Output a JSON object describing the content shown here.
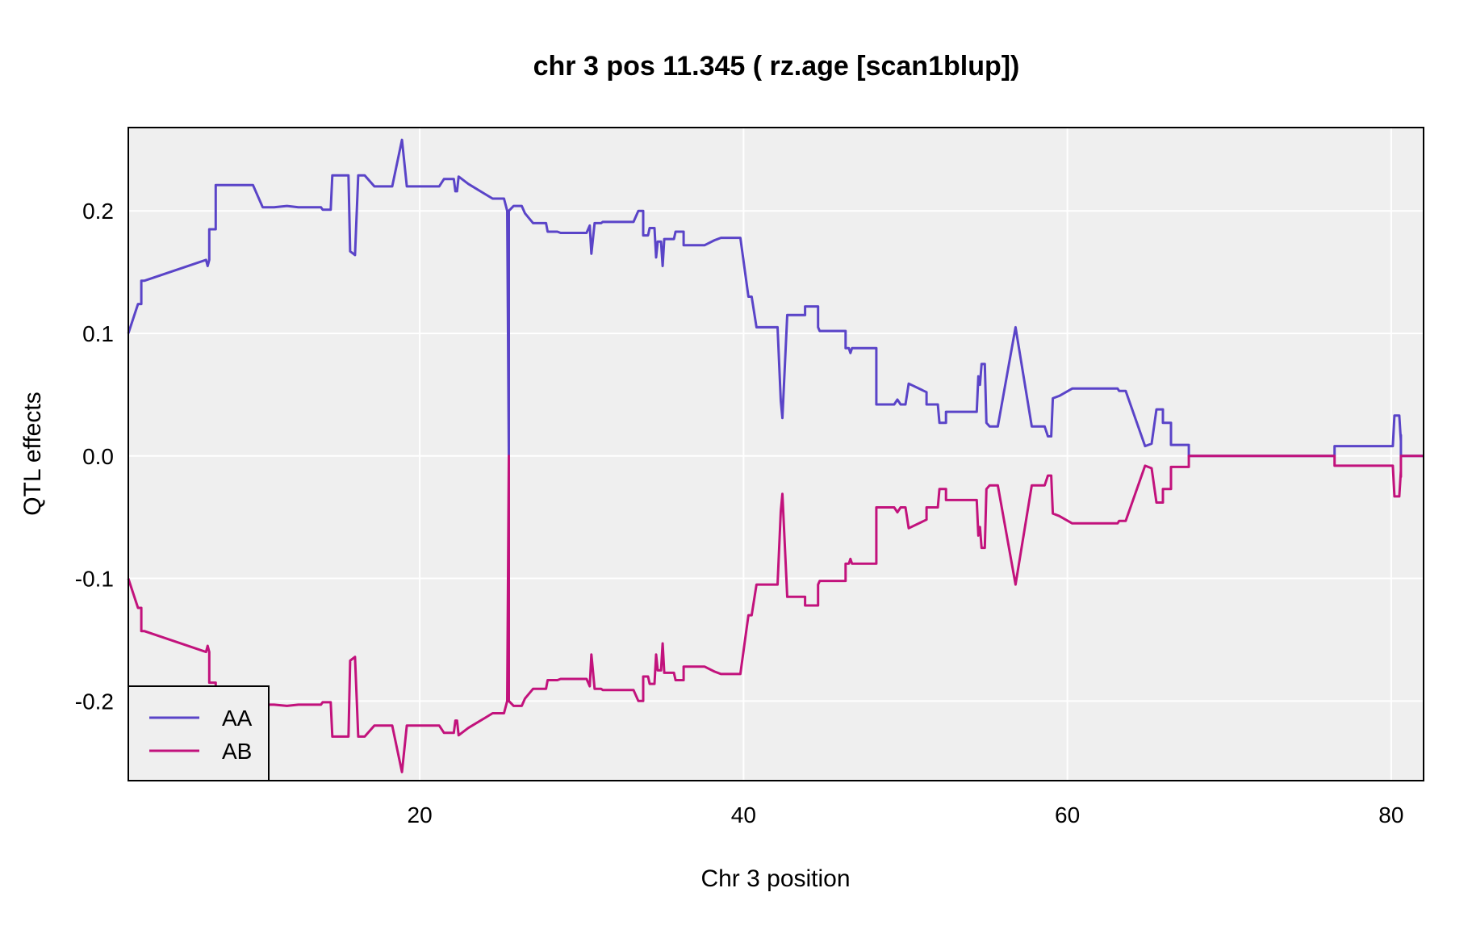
{
  "chart_data": {
    "type": "line",
    "title": "chr 3 pos 11.345 ( rz.age  [scan1blup])",
    "xlabel": "Chr 3 position",
    "ylabel": "QTL effects",
    "xlim": [
      2.0,
      82.0
    ],
    "ylim": [
      -0.265,
      0.268
    ],
    "x_ticks": [
      20,
      40,
      60,
      80
    ],
    "y_ticks": [
      0.2,
      0.1,
      0.0,
      -0.1,
      -0.2
    ],
    "y_tick_labels": [
      "0.2",
      "0.1",
      "0.0",
      "-0.1",
      "-0.2"
    ],
    "grid": true,
    "legend_position": "bottom-left",
    "colors": {
      "AA": "#5a44c8",
      "AB": "#c2127c",
      "panel": "#efefef",
      "grid": "#ffffff"
    },
    "series": [
      {
        "name": "AA",
        "color": "#5a44c8",
        "points": [
          [
            2.0,
            0.1
          ],
          [
            2.6,
            0.124
          ],
          [
            2.8,
            0.124
          ],
          [
            2.8,
            0.143
          ],
          [
            3.0,
            0.143
          ],
          [
            6.8,
            0.16
          ],
          [
            6.9,
            0.155
          ],
          [
            7.0,
            0.16
          ],
          [
            7.0,
            0.185
          ],
          [
            7.4,
            0.185
          ],
          [
            7.4,
            0.221
          ],
          [
            9.0,
            0.221
          ],
          [
            9.7,
            0.221
          ],
          [
            10.3,
            0.203
          ],
          [
            11.0,
            0.203
          ],
          [
            11.8,
            0.204
          ],
          [
            12.5,
            0.203
          ],
          [
            13.2,
            0.203
          ],
          [
            13.9,
            0.203
          ],
          [
            14.0,
            0.201
          ],
          [
            14.5,
            0.201
          ],
          [
            14.6,
            0.229
          ],
          [
            15.3,
            0.229
          ],
          [
            15.6,
            0.229
          ],
          [
            15.7,
            0.167
          ],
          [
            16.0,
            0.164
          ],
          [
            16.2,
            0.229
          ],
          [
            16.6,
            0.229
          ],
          [
            17.2,
            0.22
          ],
          [
            18.3,
            0.22
          ],
          [
            18.9,
            0.258
          ],
          [
            19.2,
            0.22
          ],
          [
            20.1,
            0.22
          ],
          [
            21.2,
            0.22
          ],
          [
            21.5,
            0.226
          ],
          [
            22.1,
            0.226
          ],
          [
            22.2,
            0.216
          ],
          [
            22.3,
            0.216
          ],
          [
            22.4,
            0.228
          ],
          [
            23.0,
            0.222
          ],
          [
            24.0,
            0.214
          ],
          [
            24.5,
            0.21
          ],
          [
            25.2,
            0.21
          ],
          [
            25.4,
            0.2
          ],
          [
            25.5,
            0.0
          ],
          [
            25.5,
            0.2
          ],
          [
            25.8,
            0.204
          ],
          [
            26.3,
            0.204
          ],
          [
            26.5,
            0.198
          ],
          [
            27.0,
            0.19
          ],
          [
            27.8,
            0.19
          ],
          [
            27.9,
            0.183
          ],
          [
            28.5,
            0.183
          ],
          [
            28.7,
            0.182
          ],
          [
            30.3,
            0.182
          ],
          [
            30.5,
            0.188
          ],
          [
            30.6,
            0.165
          ],
          [
            30.8,
            0.19
          ],
          [
            31.2,
            0.19
          ],
          [
            31.3,
            0.191
          ],
          [
            32.2,
            0.191
          ],
          [
            33.2,
            0.191
          ],
          [
            33.5,
            0.2
          ],
          [
            33.8,
            0.2
          ],
          [
            33.8,
            0.18
          ],
          [
            34.1,
            0.18
          ],
          [
            34.2,
            0.186
          ],
          [
            34.5,
            0.186
          ],
          [
            34.6,
            0.162
          ],
          [
            34.7,
            0.175
          ],
          [
            34.9,
            0.175
          ],
          [
            35.0,
            0.155
          ],
          [
            35.1,
            0.177
          ],
          [
            35.7,
            0.177
          ],
          [
            35.8,
            0.183
          ],
          [
            36.3,
            0.183
          ],
          [
            36.3,
            0.172
          ],
          [
            37.6,
            0.172
          ],
          [
            38.2,
            0.176
          ],
          [
            38.6,
            0.178
          ],
          [
            39.8,
            0.178
          ],
          [
            40.3,
            0.13
          ],
          [
            40.5,
            0.13
          ],
          [
            40.8,
            0.105
          ],
          [
            42.1,
            0.105
          ],
          [
            42.3,
            0.045
          ],
          [
            42.4,
            0.031
          ],
          [
            42.7,
            0.115
          ],
          [
            43.8,
            0.115
          ],
          [
            43.8,
            0.122
          ],
          [
            44.6,
            0.122
          ],
          [
            44.6,
            0.105
          ],
          [
            44.7,
            0.102
          ],
          [
            46.3,
            0.102
          ],
          [
            46.3,
            0.088
          ],
          [
            46.5,
            0.088
          ],
          [
            46.6,
            0.084
          ],
          [
            46.7,
            0.088
          ],
          [
            48.2,
            0.088
          ],
          [
            48.2,
            0.042
          ],
          [
            49.3,
            0.042
          ],
          [
            49.5,
            0.046
          ],
          [
            49.7,
            0.042
          ],
          [
            50.0,
            0.042
          ],
          [
            50.2,
            0.059
          ],
          [
            51.3,
            0.052
          ],
          [
            51.3,
            0.042
          ],
          [
            52.0,
            0.042
          ],
          [
            52.1,
            0.027
          ],
          [
            52.5,
            0.027
          ],
          [
            52.5,
            0.036
          ],
          [
            54.4,
            0.036
          ],
          [
            54.5,
            0.065
          ],
          [
            54.6,
            0.058
          ],
          [
            54.7,
            0.075
          ],
          [
            54.9,
            0.075
          ],
          [
            55.0,
            0.027
          ],
          [
            55.2,
            0.024
          ],
          [
            55.7,
            0.024
          ],
          [
            56.8,
            0.105
          ],
          [
            57.8,
            0.024
          ],
          [
            58.6,
            0.024
          ],
          [
            58.8,
            0.016
          ],
          [
            59.0,
            0.016
          ],
          [
            59.1,
            0.047
          ],
          [
            59.5,
            0.049
          ],
          [
            60.3,
            0.055
          ],
          [
            61.2,
            0.055
          ],
          [
            62.0,
            0.055
          ],
          [
            63.1,
            0.055
          ],
          [
            63.2,
            0.053
          ],
          [
            63.6,
            0.053
          ],
          [
            64.8,
            0.008
          ],
          [
            65.2,
            0.01
          ],
          [
            65.5,
            0.038
          ],
          [
            65.9,
            0.038
          ],
          [
            65.9,
            0.027
          ],
          [
            66.4,
            0.027
          ],
          [
            66.4,
            0.009
          ],
          [
            67.5,
            0.009
          ],
          [
            67.5,
            0.0
          ],
          [
            76.5,
            0.0
          ],
          [
            76.5,
            0.008
          ],
          [
            80.1,
            0.008
          ],
          [
            80.2,
            0.033
          ],
          [
            80.5,
            0.033
          ],
          [
            80.6,
            0.012
          ],
          [
            80.6,
            0.017
          ],
          [
            80.6,
            0.0
          ],
          [
            82.0,
            0.0
          ]
        ]
      },
      {
        "name": "AB",
        "color": "#c2127c",
        "points": [
          [
            2.0,
            -0.1
          ],
          [
            2.6,
            -0.124
          ],
          [
            2.8,
            -0.124
          ],
          [
            2.8,
            -0.143
          ],
          [
            3.0,
            -0.143
          ],
          [
            6.8,
            -0.16
          ],
          [
            6.9,
            -0.155
          ],
          [
            7.0,
            -0.16
          ],
          [
            7.0,
            -0.185
          ],
          [
            7.4,
            -0.185
          ],
          [
            7.4,
            -0.221
          ],
          [
            9.0,
            -0.221
          ],
          [
            9.7,
            -0.221
          ],
          [
            10.3,
            -0.203
          ],
          [
            11.0,
            -0.203
          ],
          [
            11.8,
            -0.204
          ],
          [
            12.5,
            -0.203
          ],
          [
            13.2,
            -0.203
          ],
          [
            13.9,
            -0.203
          ],
          [
            14.0,
            -0.201
          ],
          [
            14.5,
            -0.201
          ],
          [
            14.6,
            -0.229
          ],
          [
            15.3,
            -0.229
          ],
          [
            15.6,
            -0.229
          ],
          [
            15.7,
            -0.167
          ],
          [
            16.0,
            -0.164
          ],
          [
            16.2,
            -0.229
          ],
          [
            16.6,
            -0.229
          ],
          [
            17.2,
            -0.22
          ],
          [
            18.3,
            -0.22
          ],
          [
            18.9,
            -0.258
          ],
          [
            19.2,
            -0.22
          ],
          [
            20.1,
            -0.22
          ],
          [
            21.2,
            -0.22
          ],
          [
            21.5,
            -0.226
          ],
          [
            22.1,
            -0.226
          ],
          [
            22.2,
            -0.216
          ],
          [
            22.3,
            -0.216
          ],
          [
            22.4,
            -0.228
          ],
          [
            23.0,
            -0.222
          ],
          [
            24.0,
            -0.214
          ],
          [
            24.5,
            -0.21
          ],
          [
            25.2,
            -0.21
          ],
          [
            25.4,
            -0.2
          ],
          [
            25.5,
            0.0
          ],
          [
            25.5,
            -0.2
          ],
          [
            25.8,
            -0.204
          ],
          [
            26.3,
            -0.204
          ],
          [
            26.5,
            -0.198
          ],
          [
            27.0,
            -0.19
          ],
          [
            27.8,
            -0.19
          ],
          [
            27.9,
            -0.183
          ],
          [
            28.5,
            -0.183
          ],
          [
            28.7,
            -0.182
          ],
          [
            30.3,
            -0.182
          ],
          [
            30.5,
            -0.188
          ],
          [
            30.6,
            -0.162
          ],
          [
            30.8,
            -0.19
          ],
          [
            31.2,
            -0.19
          ],
          [
            31.3,
            -0.191
          ],
          [
            32.2,
            -0.191
          ],
          [
            33.2,
            -0.191
          ],
          [
            33.5,
            -0.2
          ],
          [
            33.8,
            -0.2
          ],
          [
            33.8,
            -0.18
          ],
          [
            34.1,
            -0.18
          ],
          [
            34.2,
            -0.186
          ],
          [
            34.5,
            -0.186
          ],
          [
            34.6,
            -0.162
          ],
          [
            34.7,
            -0.175
          ],
          [
            34.9,
            -0.175
          ],
          [
            35.0,
            -0.153
          ],
          [
            35.1,
            -0.177
          ],
          [
            35.7,
            -0.177
          ],
          [
            35.8,
            -0.183
          ],
          [
            36.3,
            -0.183
          ],
          [
            36.3,
            -0.172
          ],
          [
            37.6,
            -0.172
          ],
          [
            38.2,
            -0.176
          ],
          [
            38.6,
            -0.178
          ],
          [
            39.8,
            -0.178
          ],
          [
            40.3,
            -0.13
          ],
          [
            40.5,
            -0.13
          ],
          [
            40.8,
            -0.105
          ],
          [
            42.1,
            -0.105
          ],
          [
            42.3,
            -0.045
          ],
          [
            42.4,
            -0.031
          ],
          [
            42.7,
            -0.115
          ],
          [
            43.8,
            -0.115
          ],
          [
            43.8,
            -0.122
          ],
          [
            44.6,
            -0.122
          ],
          [
            44.6,
            -0.105
          ],
          [
            44.7,
            -0.102
          ],
          [
            46.3,
            -0.102
          ],
          [
            46.3,
            -0.088
          ],
          [
            46.5,
            -0.088
          ],
          [
            46.6,
            -0.084
          ],
          [
            46.7,
            -0.088
          ],
          [
            48.2,
            -0.088
          ],
          [
            48.2,
            -0.042
          ],
          [
            49.3,
            -0.042
          ],
          [
            49.5,
            -0.046
          ],
          [
            49.7,
            -0.042
          ],
          [
            50.0,
            -0.042
          ],
          [
            50.2,
            -0.059
          ],
          [
            51.3,
            -0.052
          ],
          [
            51.3,
            -0.042
          ],
          [
            52.0,
            -0.042
          ],
          [
            52.1,
            -0.027
          ],
          [
            52.5,
            -0.027
          ],
          [
            52.5,
            -0.036
          ],
          [
            54.4,
            -0.036
          ],
          [
            54.5,
            -0.065
          ],
          [
            54.6,
            -0.058
          ],
          [
            54.7,
            -0.075
          ],
          [
            54.9,
            -0.075
          ],
          [
            55.0,
            -0.027
          ],
          [
            55.2,
            -0.024
          ],
          [
            55.7,
            -0.024
          ],
          [
            56.8,
            -0.105
          ],
          [
            57.8,
            -0.024
          ],
          [
            58.6,
            -0.024
          ],
          [
            58.8,
            -0.016
          ],
          [
            59.0,
            -0.016
          ],
          [
            59.1,
            -0.047
          ],
          [
            59.5,
            -0.049
          ],
          [
            60.3,
            -0.055
          ],
          [
            61.2,
            -0.055
          ],
          [
            62.0,
            -0.055
          ],
          [
            63.1,
            -0.055
          ],
          [
            63.2,
            -0.053
          ],
          [
            63.6,
            -0.053
          ],
          [
            64.8,
            -0.008
          ],
          [
            65.2,
            -0.01
          ],
          [
            65.5,
            -0.038
          ],
          [
            65.9,
            -0.038
          ],
          [
            65.9,
            -0.027
          ],
          [
            66.4,
            -0.027
          ],
          [
            66.4,
            -0.009
          ],
          [
            67.5,
            -0.009
          ],
          [
            67.5,
            0.0
          ],
          [
            76.5,
            0.0
          ],
          [
            76.5,
            -0.008
          ],
          [
            80.1,
            -0.008
          ],
          [
            80.2,
            -0.033
          ],
          [
            80.5,
            -0.033
          ],
          [
            80.6,
            -0.012
          ],
          [
            80.6,
            -0.017
          ],
          [
            80.6,
            0.0
          ],
          [
            82.0,
            0.0
          ]
        ]
      }
    ]
  }
}
